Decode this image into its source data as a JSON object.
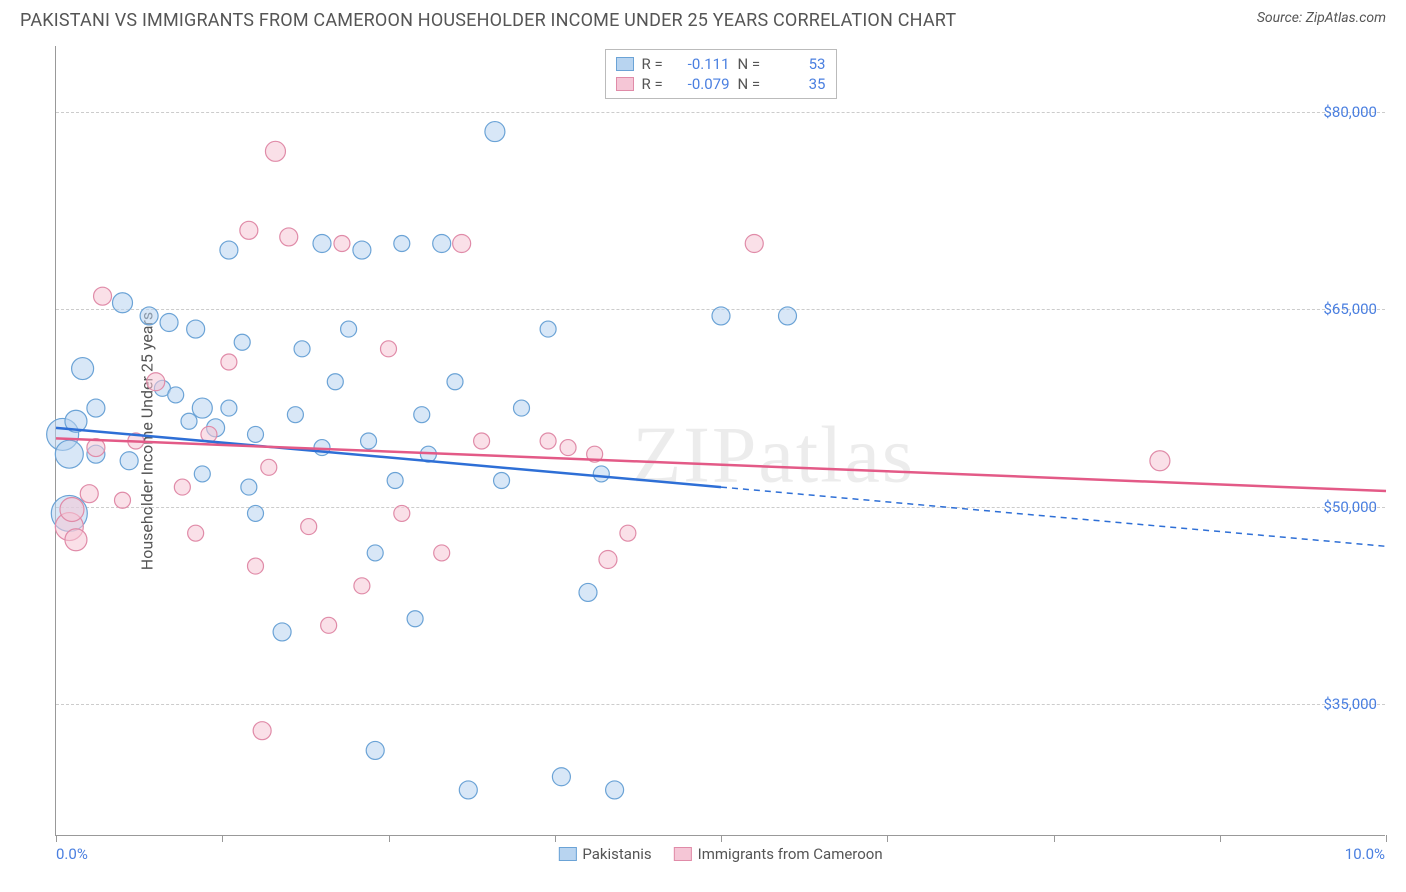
{
  "title": "PAKISTANI VS IMMIGRANTS FROM CAMEROON HOUSEHOLDER INCOME UNDER 25 YEARS CORRELATION CHART",
  "source": "Source: ZipAtlas.com",
  "watermark": "ZIPatlas",
  "yaxis_title": "Householder Income Under 25 years",
  "chart": {
    "type": "scatter",
    "xlim": [
      0.0,
      10.0
    ],
    "ylim": [
      25000,
      85000
    ],
    "xlabel_min": "0.0%",
    "xlabel_max": "10.0%",
    "yticks": [
      35000,
      50000,
      65000,
      80000
    ],
    "ytick_labels": [
      "$35,000",
      "$50,000",
      "$65,000",
      "$80,000"
    ],
    "xticks": [
      0.0,
      1.25,
      2.5,
      3.75,
      5.0,
      6.25,
      7.5,
      8.75,
      10.0
    ],
    "background_color": "#ffffff",
    "grid_color": "#cccccc",
    "axis_color": "#999999",
    "tick_label_color": "#4a7fe0",
    "series": [
      {
        "name": "Pakistanis",
        "fill_color": "#b8d4f0",
        "stroke_color": "#6ba3d6",
        "line_color": "#2e6fd6",
        "fill_opacity": 0.55,
        "R": "-0.111",
        "N": "53",
        "trend": {
          "x1": 0.0,
          "y1": 56000,
          "x2": 5.0,
          "y2": 51500,
          "dash_x1": 5.0,
          "dash_x2": 10.0,
          "dash_y2": 47000
        },
        "points": [
          {
            "x": 0.05,
            "y": 55500,
            "r": 16
          },
          {
            "x": 0.1,
            "y": 49500,
            "r": 18
          },
          {
            "x": 0.1,
            "y": 54000,
            "r": 14
          },
          {
            "x": 0.15,
            "y": 56500,
            "r": 11
          },
          {
            "x": 0.2,
            "y": 60500,
            "r": 11
          },
          {
            "x": 0.3,
            "y": 57500,
            "r": 9
          },
          {
            "x": 0.3,
            "y": 54000,
            "r": 9
          },
          {
            "x": 0.5,
            "y": 65500,
            "r": 10
          },
          {
            "x": 0.55,
            "y": 53500,
            "r": 9
          },
          {
            "x": 0.7,
            "y": 64500,
            "r": 9
          },
          {
            "x": 0.8,
            "y": 59000,
            "r": 8
          },
          {
            "x": 0.85,
            "y": 64000,
            "r": 9
          },
          {
            "x": 0.9,
            "y": 58500,
            "r": 8
          },
          {
            "x": 1.0,
            "y": 56500,
            "r": 8
          },
          {
            "x": 1.05,
            "y": 63500,
            "r": 9
          },
          {
            "x": 1.1,
            "y": 57500,
            "r": 10
          },
          {
            "x": 1.1,
            "y": 52500,
            "r": 8
          },
          {
            "x": 1.2,
            "y": 56000,
            "r": 9
          },
          {
            "x": 1.3,
            "y": 69500,
            "r": 9
          },
          {
            "x": 1.3,
            "y": 57500,
            "r": 8
          },
          {
            "x": 1.4,
            "y": 62500,
            "r": 8
          },
          {
            "x": 1.45,
            "y": 51500,
            "r": 8
          },
          {
            "x": 1.5,
            "y": 55500,
            "r": 8
          },
          {
            "x": 1.5,
            "y": 49500,
            "r": 8
          },
          {
            "x": 1.7,
            "y": 40500,
            "r": 9
          },
          {
            "x": 1.8,
            "y": 57000,
            "r": 8
          },
          {
            "x": 1.85,
            "y": 62000,
            "r": 8
          },
          {
            "x": 2.0,
            "y": 70000,
            "r": 9
          },
          {
            "x": 2.0,
            "y": 54500,
            "r": 8
          },
          {
            "x": 2.1,
            "y": 59500,
            "r": 8
          },
          {
            "x": 2.2,
            "y": 63500,
            "r": 8
          },
          {
            "x": 2.3,
            "y": 69500,
            "r": 9
          },
          {
            "x": 2.35,
            "y": 55000,
            "r": 8
          },
          {
            "x": 2.4,
            "y": 46500,
            "r": 8
          },
          {
            "x": 2.4,
            "y": 31500,
            "r": 9
          },
          {
            "x": 2.55,
            "y": 52000,
            "r": 8
          },
          {
            "x": 2.6,
            "y": 70000,
            "r": 8
          },
          {
            "x": 2.7,
            "y": 41500,
            "r": 8
          },
          {
            "x": 2.75,
            "y": 57000,
            "r": 8
          },
          {
            "x": 2.8,
            "y": 54000,
            "r": 8
          },
          {
            "x": 2.9,
            "y": 70000,
            "r": 9
          },
          {
            "x": 3.0,
            "y": 59500,
            "r": 8
          },
          {
            "x": 3.1,
            "y": 28500,
            "r": 9
          },
          {
            "x": 3.3,
            "y": 78500,
            "r": 10
          },
          {
            "x": 3.35,
            "y": 52000,
            "r": 8
          },
          {
            "x": 3.5,
            "y": 57500,
            "r": 8
          },
          {
            "x": 3.7,
            "y": 63500,
            "r": 8
          },
          {
            "x": 3.8,
            "y": 29500,
            "r": 9
          },
          {
            "x": 4.0,
            "y": 43500,
            "r": 9
          },
          {
            "x": 4.1,
            "y": 52500,
            "r": 8
          },
          {
            "x": 4.2,
            "y": 28500,
            "r": 9
          },
          {
            "x": 5.0,
            "y": 64500,
            "r": 9
          },
          {
            "x": 5.5,
            "y": 64500,
            "r": 9
          }
        ]
      },
      {
        "name": "Immigrants from Cameroon",
        "fill_color": "#f5c6d6",
        "stroke_color": "#e08ba8",
        "line_color": "#e35a87",
        "fill_opacity": 0.55,
        "R": "-0.079",
        "N": "35",
        "trend": {
          "x1": 0.0,
          "y1": 55200,
          "x2": 10.0,
          "y2": 51200,
          "dash_x1": 10.0,
          "dash_x2": 10.0,
          "dash_y2": 51200
        },
        "points": [
          {
            "x": 0.1,
            "y": 48500,
            "r": 14
          },
          {
            "x": 0.12,
            "y": 49800,
            "r": 12
          },
          {
            "x": 0.15,
            "y": 47500,
            "r": 11
          },
          {
            "x": 0.25,
            "y": 51000,
            "r": 9
          },
          {
            "x": 0.3,
            "y": 54500,
            "r": 9
          },
          {
            "x": 0.35,
            "y": 66000,
            "r": 9
          },
          {
            "x": 0.5,
            "y": 50500,
            "r": 8
          },
          {
            "x": 0.6,
            "y": 55000,
            "r": 8
          },
          {
            "x": 0.75,
            "y": 59500,
            "r": 9
          },
          {
            "x": 0.95,
            "y": 51500,
            "r": 8
          },
          {
            "x": 1.05,
            "y": 48000,
            "r": 8
          },
          {
            "x": 1.15,
            "y": 55500,
            "r": 8
          },
          {
            "x": 1.3,
            "y": 61000,
            "r": 8
          },
          {
            "x": 1.45,
            "y": 71000,
            "r": 9
          },
          {
            "x": 1.5,
            "y": 45500,
            "r": 8
          },
          {
            "x": 1.55,
            "y": 33000,
            "r": 9
          },
          {
            "x": 1.6,
            "y": 53000,
            "r": 8
          },
          {
            "x": 1.65,
            "y": 77000,
            "r": 10
          },
          {
            "x": 1.75,
            "y": 70500,
            "r": 9
          },
          {
            "x": 1.9,
            "y": 48500,
            "r": 8
          },
          {
            "x": 2.05,
            "y": 41000,
            "r": 8
          },
          {
            "x": 2.15,
            "y": 70000,
            "r": 8
          },
          {
            "x": 2.3,
            "y": 44000,
            "r": 8
          },
          {
            "x": 2.5,
            "y": 62000,
            "r": 8
          },
          {
            "x": 2.6,
            "y": 49500,
            "r": 8
          },
          {
            "x": 2.9,
            "y": 46500,
            "r": 8
          },
          {
            "x": 3.05,
            "y": 70000,
            "r": 9
          },
          {
            "x": 3.2,
            "y": 55000,
            "r": 8
          },
          {
            "x": 3.7,
            "y": 55000,
            "r": 8
          },
          {
            "x": 3.85,
            "y": 54500,
            "r": 8
          },
          {
            "x": 4.05,
            "y": 54000,
            "r": 8
          },
          {
            "x": 4.15,
            "y": 46000,
            "r": 9
          },
          {
            "x": 4.3,
            "y": 48000,
            "r": 8
          },
          {
            "x": 5.25,
            "y": 70000,
            "r": 9
          },
          {
            "x": 8.3,
            "y": 53500,
            "r": 10
          }
        ]
      }
    ]
  }
}
